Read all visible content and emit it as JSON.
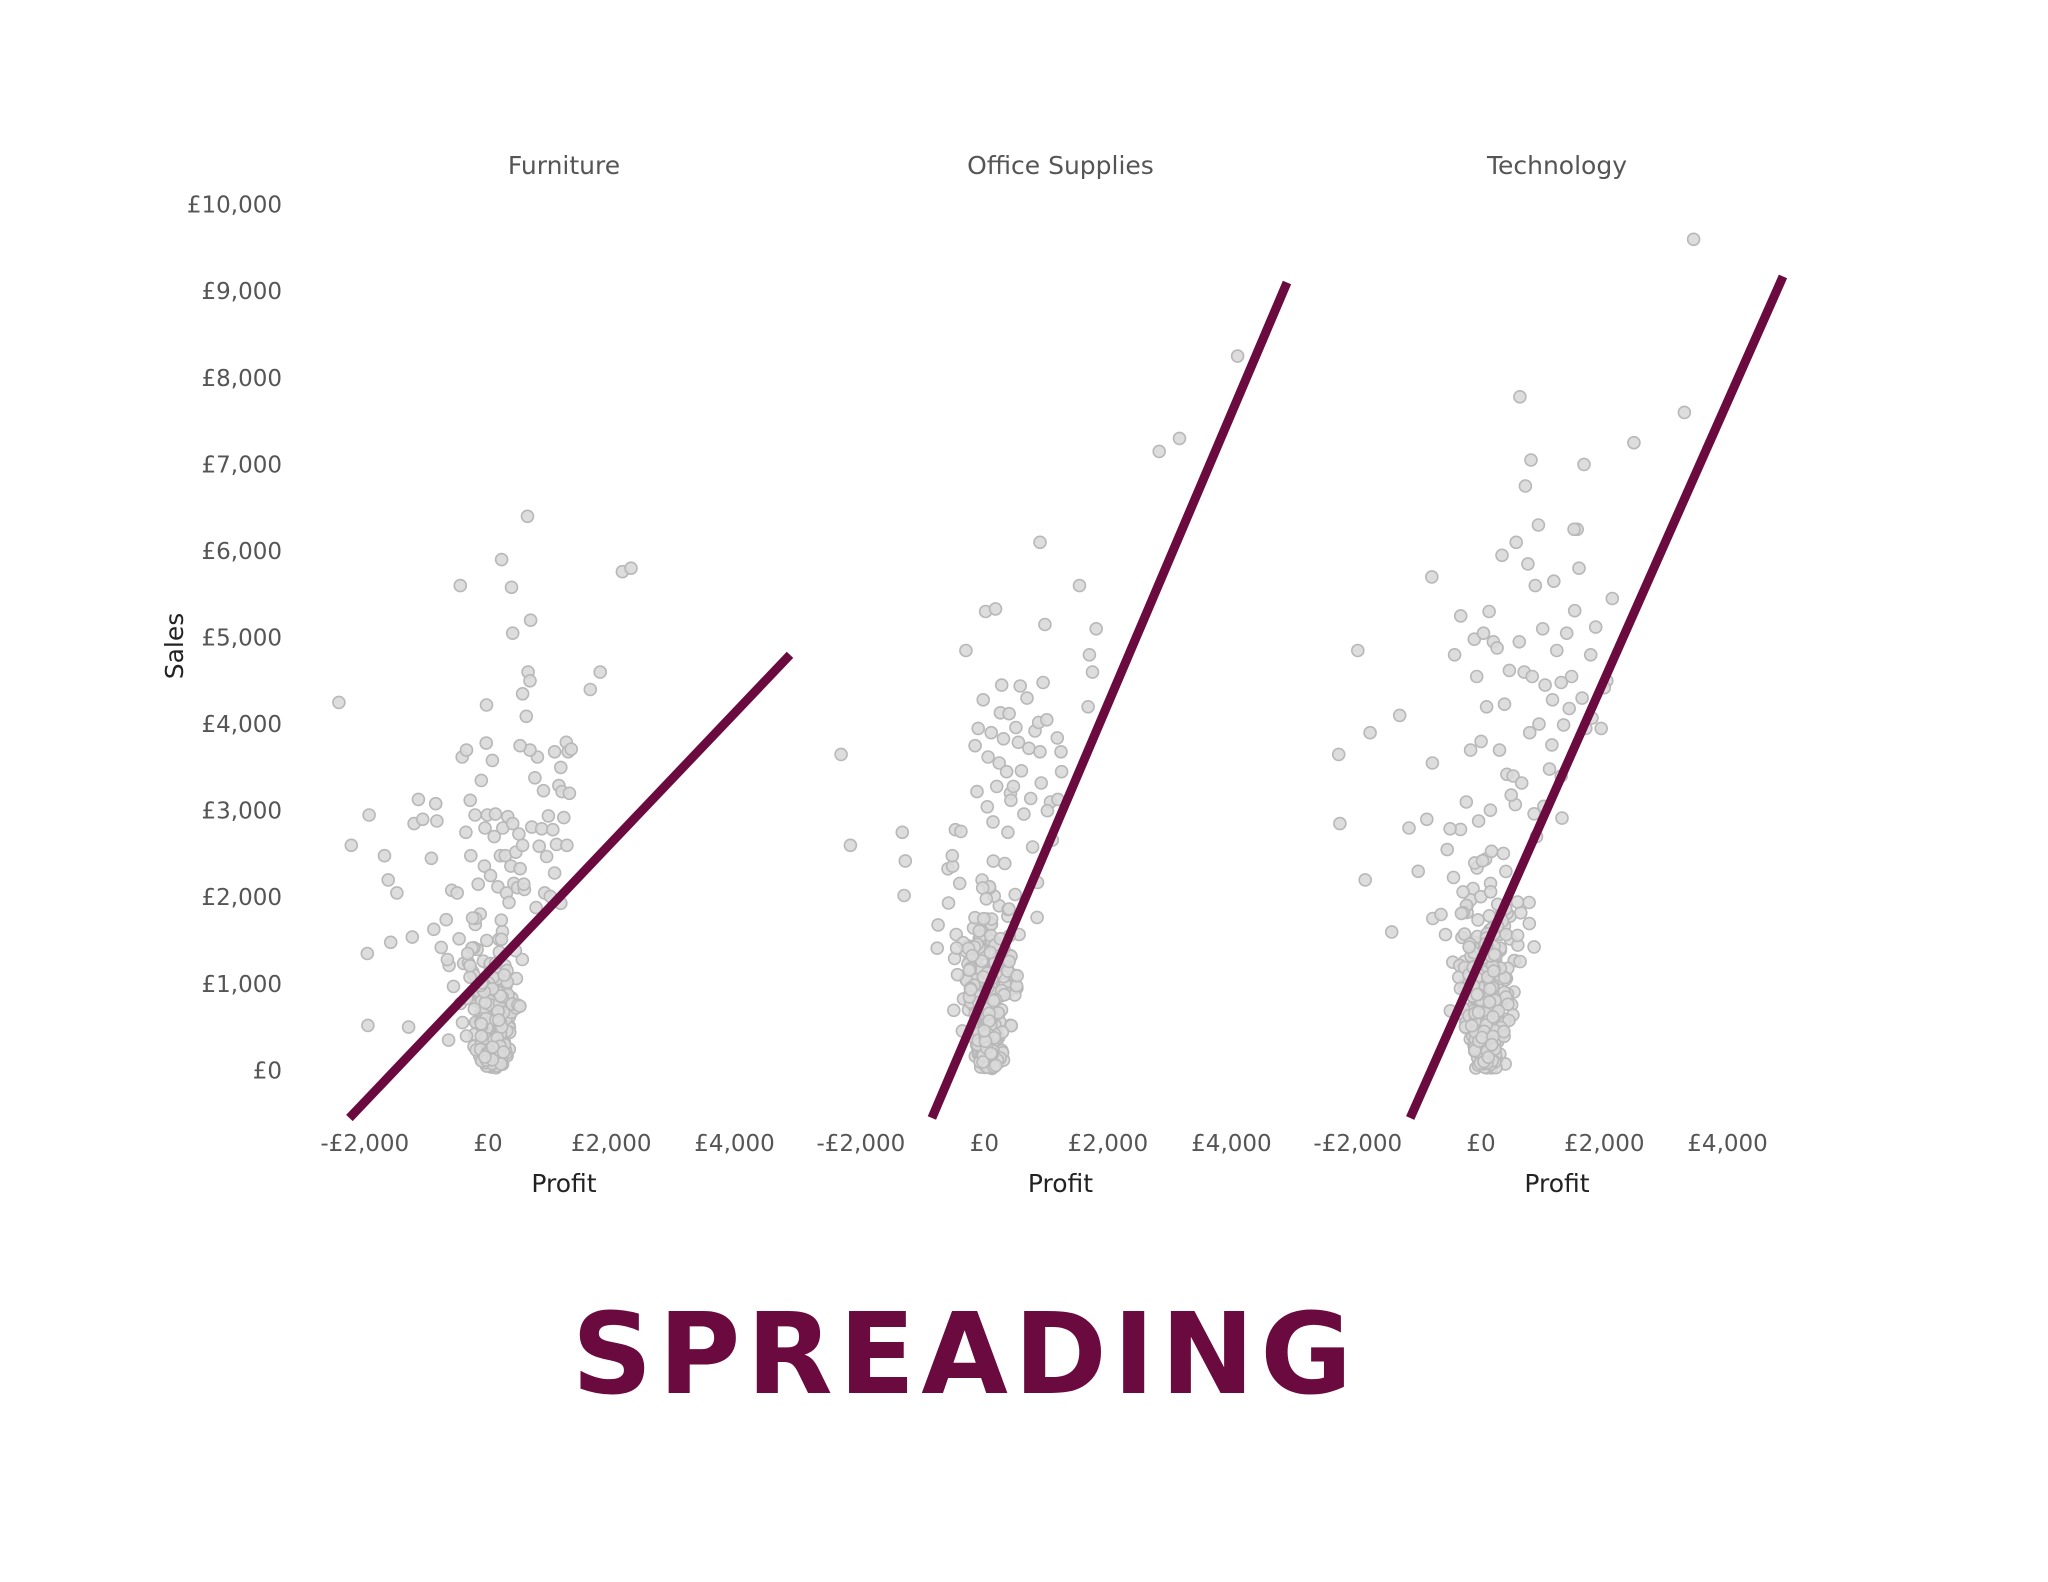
{
  "chart_data": {
    "type": "scatter",
    "caption": "SPREADING",
    "xlabel": "Profit",
    "ylabel": "Sales",
    "xlim": [
      -2500,
      4900
    ],
    "ylim": [
      -550,
      10400
    ],
    "x_ticks": [
      -2000,
      0,
      2000,
      4000
    ],
    "x_tick_labels": [
      "-£2,000",
      "£0",
      "£2,000",
      "£4,000"
    ],
    "y_ticks": [
      0,
      1000,
      2000,
      3000,
      4000,
      5000,
      6000,
      7000,
      8000,
      9000,
      10000
    ],
    "y_tick_labels": [
      "£0",
      "£1,000",
      "£2,000",
      "£3,000",
      "£4,000",
      "£5,000",
      "£6,000",
      "£7,000",
      "£8,000",
      "£9,000",
      "£10,000"
    ],
    "grid": false,
    "colors": {
      "points_fill": "#d9d9d9",
      "points_stroke": "#b8b8b8",
      "trend": "#6b0a3f",
      "caption": "#6b0a3f",
      "text": "#555555"
    },
    "panels": [
      {
        "title": "Furniture",
        "trend_line": [
          [
            -2250,
            -550
          ],
          [
            4900,
            4800
          ]
        ],
        "points": [
          [
            -2420,
            4250
          ],
          [
            -2220,
            2600
          ],
          [
            -1930,
            2950
          ],
          [
            -1680,
            2480
          ],
          [
            -1620,
            2200
          ],
          [
            -1580,
            1480
          ],
          [
            -1480,
            2050
          ],
          [
            -1960,
            1350
          ],
          [
            -1950,
            520
          ],
          [
            -1290,
            500
          ],
          [
            -1230,
            1540
          ],
          [
            -1200,
            2850
          ],
          [
            -1060,
            2900
          ],
          [
            -1130,
            3130
          ],
          [
            -920,
            2450
          ],
          [
            -880,
            1630
          ],
          [
            -830,
            2880
          ],
          [
            -850,
            3080
          ],
          [
            -760,
            1420
          ],
          [
            -680,
            1740
          ],
          [
            -660,
            1280
          ],
          [
            -640,
            350
          ],
          [
            -560,
            970
          ],
          [
            -590,
            2080
          ],
          [
            -470,
            1520
          ],
          [
            -500,
            2050
          ],
          [
            -420,
            3620
          ],
          [
            -350,
            3700
          ],
          [
            -360,
            2750
          ],
          [
            -330,
            1350
          ],
          [
            -290,
            3120
          ],
          [
            -280,
            2480
          ],
          [
            -210,
            2950
          ],
          [
            -250,
            1760
          ],
          [
            -160,
            2150
          ],
          [
            -110,
            3350
          ],
          [
            -100,
            1010
          ],
          [
            -60,
            2360
          ],
          [
            -50,
            2800
          ],
          [
            -30,
            3780
          ],
          [
            -20,
            1500
          ],
          [
            -10,
            2950
          ],
          [
            -25,
            4220
          ],
          [
            40,
            2250
          ],
          [
            70,
            3580
          ],
          [
            100,
            2700
          ],
          [
            120,
            2960
          ],
          [
            160,
            2120
          ],
          [
            200,
            2480
          ],
          [
            240,
            2800
          ],
          [
            280,
            2480
          ],
          [
            300,
            2050
          ],
          [
            320,
            2930
          ],
          [
            340,
            1940
          ],
          [
            370,
            2360
          ],
          [
            400,
            2850
          ],
          [
            420,
            2160
          ],
          [
            450,
            2520
          ],
          [
            480,
            2110
          ],
          [
            500,
            2730
          ],
          [
            520,
            2330
          ],
          [
            560,
            2600
          ],
          [
            590,
            2090
          ],
          [
            650,
            4600
          ],
          [
            680,
            4500
          ],
          [
            710,
            2810
          ],
          [
            760,
            3380
          ],
          [
            780,
            1880
          ],
          [
            800,
            3620
          ],
          [
            830,
            2590
          ],
          [
            870,
            2790
          ],
          [
            900,
            3230
          ],
          [
            920,
            2050
          ],
          [
            950,
            2470
          ],
          [
            980,
            2940
          ],
          [
            1010,
            2010
          ],
          [
            1050,
            2780
          ],
          [
            1080,
            3680
          ],
          [
            1110,
            2610
          ],
          [
            1150,
            3290
          ],
          [
            1180,
            3500
          ],
          [
            1200,
            3220
          ],
          [
            1230,
            2920
          ],
          [
            1270,
            3790
          ],
          [
            1300,
            3680
          ],
          [
            1320,
            3200
          ],
          [
            1350,
            3710
          ],
          [
            1280,
            2600
          ],
          [
            1180,
            1930
          ],
          [
            1080,
            2280
          ],
          [
            680,
            3700
          ],
          [
            620,
            4090
          ],
          [
            560,
            4350
          ],
          [
            520,
            3750
          ],
          [
            400,
            5050
          ],
          [
            220,
            5900
          ],
          [
            -450,
            5600
          ],
          [
            380,
            5580
          ],
          [
            640,
            6400
          ],
          [
            690,
            5200
          ],
          [
            1660,
            4400
          ],
          [
            1820,
            4600
          ],
          [
            2180,
            5760
          ],
          [
            2320,
            5800
          ],
          [
            580,
            2150
          ]
        ],
        "dense_center": [
          80,
          1200
        ],
        "dense_spread": [
          340,
          700
        ],
        "dense_count": 320
      },
      {
        "title": "Office Supplies",
        "trend_line": [
          [
            -850,
            -550
          ],
          [
            4900,
            9100
          ]
        ],
        "points": [
          [
            -2320,
            3650
          ],
          [
            -2170,
            2600
          ],
          [
            -1330,
            2750
          ],
          [
            -1280,
            2420
          ],
          [
            -1300,
            2020
          ],
          [
            -750,
            1680
          ],
          [
            -520,
            2480
          ],
          [
            -470,
            2780
          ],
          [
            -380,
            2760
          ],
          [
            -400,
            2160
          ],
          [
            -300,
            4850
          ],
          [
            -150,
            3750
          ],
          [
            -120,
            3220
          ],
          [
            -100,
            3950
          ],
          [
            -20,
            4280
          ],
          [
            20,
            5300
          ],
          [
            60,
            3620
          ],
          [
            110,
            3900
          ],
          [
            140,
            2870
          ],
          [
            180,
            5330
          ],
          [
            200,
            3280
          ],
          [
            240,
            3550
          ],
          [
            260,
            4130
          ],
          [
            280,
            4450
          ],
          [
            310,
            3830
          ],
          [
            330,
            2390
          ],
          [
            360,
            3450
          ],
          [
            380,
            2750
          ],
          [
            400,
            4120
          ],
          [
            430,
            3120
          ],
          [
            470,
            3280
          ],
          [
            510,
            3960
          ],
          [
            550,
            3790
          ],
          [
            580,
            4440
          ],
          [
            600,
            3460
          ],
          [
            640,
            2960
          ],
          [
            690,
            4300
          ],
          [
            720,
            3720
          ],
          [
            750,
            3140
          ],
          [
            780,
            2580
          ],
          [
            820,
            3920
          ],
          [
            860,
            2170
          ],
          [
            880,
            4020
          ],
          [
            900,
            3680
          ],
          [
            920,
            3320
          ],
          [
            950,
            4480
          ],
          [
            980,
            5150
          ],
          [
            1010,
            4050
          ],
          [
            1070,
            3100
          ],
          [
            1180,
            3840
          ],
          [
            1250,
            3450
          ],
          [
            900,
            6100
          ],
          [
            1540,
            5600
          ],
          [
            1810,
            5100
          ],
          [
            1700,
            4800
          ],
          [
            1750,
            4600
          ],
          [
            1680,
            4200
          ],
          [
            1240,
            3680
          ],
          [
            2830,
            7150
          ],
          [
            3160,
            7300
          ],
          [
            4100,
            8250
          ],
          [
            1020,
            3000
          ],
          [
            1100,
            2660
          ],
          [
            1190,
            3130
          ]
        ],
        "dense_center": [
          70,
          1500
        ],
        "dense_spread": [
          320,
          1050
        ],
        "dense_count": 330
      },
      {
        "title": "Technology",
        "trend_line": [
          [
            -1150,
            -550
          ],
          [
            4900,
            9170
          ]
        ],
        "points": [
          [
            -2310,
            3650
          ],
          [
            -2290,
            2850
          ],
          [
            -1880,
            2200
          ],
          [
            -2000,
            4850
          ],
          [
            -1800,
            3900
          ],
          [
            -1450,
            1600
          ],
          [
            -1320,
            4100
          ],
          [
            -1170,
            2800
          ],
          [
            -1020,
            2300
          ],
          [
            -880,
            2900
          ],
          [
            -800,
            5700
          ],
          [
            -790,
            3550
          ],
          [
            -650,
            1800
          ],
          [
            -550,
            2550
          ],
          [
            -430,
            4800
          ],
          [
            -330,
            5250
          ],
          [
            -240,
            3100
          ],
          [
            -170,
            3700
          ],
          [
            -110,
            4980
          ],
          [
            -70,
            4550
          ],
          [
            -40,
            2880
          ],
          [
            0,
            3800
          ],
          [
            40,
            5050
          ],
          [
            90,
            4200
          ],
          [
            130,
            5300
          ],
          [
            170,
            2530
          ],
          [
            200,
            4950
          ],
          [
            260,
            4880
          ],
          [
            300,
            3700
          ],
          [
            340,
            5950
          ],
          [
            380,
            4230
          ],
          [
            420,
            3420
          ],
          [
            460,
            4620
          ],
          [
            490,
            3180
          ],
          [
            520,
            3400
          ],
          [
            570,
            6100
          ],
          [
            620,
            4950
          ],
          [
            660,
            3320
          ],
          [
            700,
            4600
          ],
          [
            760,
            5850
          ],
          [
            790,
            3900
          ],
          [
            830,
            4550
          ],
          [
            880,
            5600
          ],
          [
            940,
            4000
          ],
          [
            1000,
            5100
          ],
          [
            1040,
            4450
          ],
          [
            1110,
            3480
          ],
          [
            1150,
            3760
          ],
          [
            1180,
            5650
          ],
          [
            1230,
            4850
          ],
          [
            1300,
            4480
          ],
          [
            1340,
            3990
          ],
          [
            1390,
            5050
          ],
          [
            1430,
            4180
          ],
          [
            1470,
            4550
          ],
          [
            1520,
            5310
          ],
          [
            1560,
            6250
          ],
          [
            1590,
            5800
          ],
          [
            1640,
            4300
          ],
          [
            1700,
            3950
          ],
          [
            1780,
            4800
          ],
          [
            1860,
            5120
          ],
          [
            1950,
            3950
          ],
          [
            2040,
            4500
          ],
          [
            2130,
            5450
          ],
          [
            720,
            6750
          ],
          [
            630,
            7780
          ],
          [
            810,
            7050
          ],
          [
            930,
            6300
          ],
          [
            1670,
            7000
          ],
          [
            2480,
            7250
          ],
          [
            3300,
            7600
          ],
          [
            3450,
            9600
          ],
          [
            1510,
            6250
          ],
          [
            1160,
            4280
          ],
          [
            2000,
            4420
          ],
          [
            1800,
            4070
          ],
          [
            1300,
            3400
          ],
          [
            1020,
            3050
          ],
          [
            900,
            2700
          ]
        ],
        "dense_center": [
          80,
          1450
        ],
        "dense_spread": [
          380,
          1150
        ],
        "dense_count": 340
      }
    ]
  }
}
